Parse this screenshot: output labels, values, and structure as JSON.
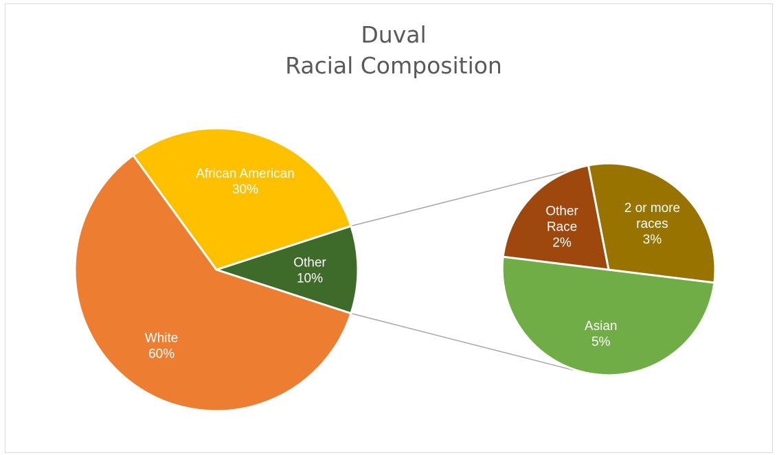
{
  "chart_data": {
    "type": "pie",
    "subtype": "pie-of-pie",
    "title": [
      "Duval",
      "Racial Composition"
    ],
    "main": {
      "slices": [
        {
          "name": "Other",
          "value": 10,
          "color": "#3f6b2a",
          "label": [
            "Other",
            "10%"
          ]
        },
        {
          "name": "White",
          "value": 60,
          "color": "#ed7d31",
          "label": [
            "White",
            "60%"
          ]
        },
        {
          "name": "African American",
          "value": 30,
          "color": "#ffc000",
          "label": [
            "African American",
            "30%"
          ]
        }
      ]
    },
    "secondary": {
      "parent": "Other",
      "slices": [
        {
          "name": "Asian",
          "value": 5,
          "color": "#70ad47",
          "label": [
            "Asian",
            "5%"
          ]
        },
        {
          "name": "Other Race",
          "value": 2,
          "color": "#9e480e",
          "label": [
            "Other",
            "Race",
            "2%"
          ]
        },
        {
          "name": "2 or more races",
          "value": 3,
          "color": "#997300",
          "label": [
            "2 or more",
            "races",
            "3%"
          ]
        }
      ]
    },
    "connector_color": "#a6a6a6",
    "legend": "none"
  }
}
